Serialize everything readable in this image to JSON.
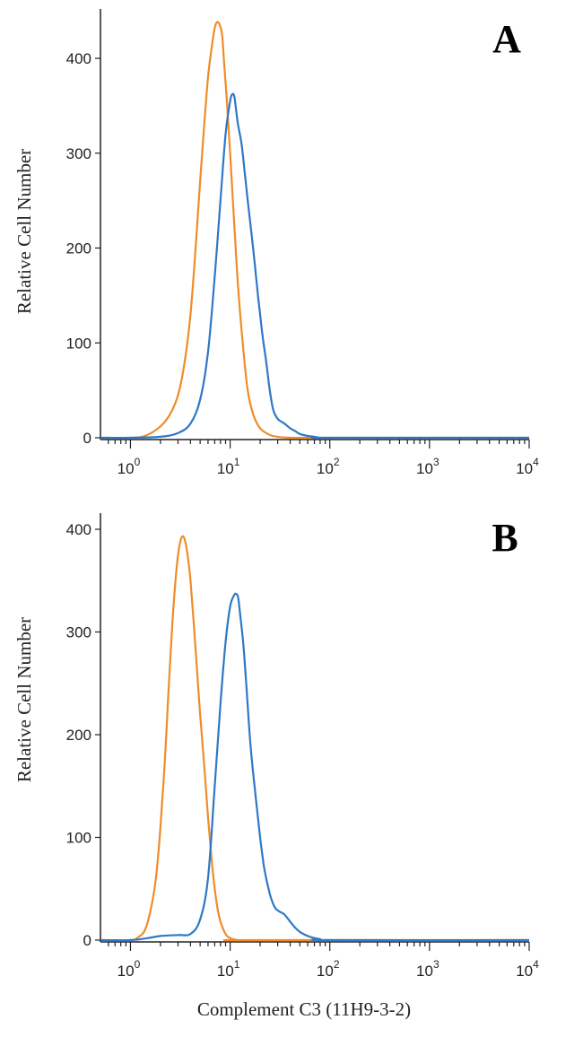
{
  "chart_data": [
    {
      "type": "line",
      "panel_label": "A",
      "ylabel": "Relative Cell Number",
      "xlabel": "",
      "x_scale": "log",
      "xlim": [
        0.5,
        10000
      ],
      "ylim": [
        0,
        460
      ],
      "xticks": [
        {
          "base": "10",
          "exp": "0"
        },
        {
          "base": "10",
          "exp": "1"
        },
        {
          "base": "10",
          "exp": "2"
        },
        {
          "base": "10",
          "exp": "3"
        },
        {
          "base": "10",
          "exp": "4"
        }
      ],
      "yticks": [
        "0",
        "100",
        "200",
        "300",
        "400"
      ],
      "ytick_values": [
        0,
        100,
        200,
        300,
        400
      ],
      "xtick_values": [
        1,
        10,
        100,
        1000,
        10000
      ],
      "grid": false,
      "series": [
        {
          "color": "#f08c28",
          "x": [
            0.5,
            1.0,
            1.4,
            2.0,
            2.5,
            3.0,
            3.5,
            4.0,
            4.5,
            5.0,
            5.5,
            6.0,
            6.5,
            7.0,
            7.4,
            7.8,
            8.3,
            8.7,
            9.2,
            10.0,
            11.0,
            12.0,
            13.5,
            15.0,
            17.0,
            20.0,
            25.0,
            30.0,
            40.0,
            60.0,
            10000
          ],
          "y": [
            0,
            0,
            2,
            12,
            25,
            45,
            80,
            130,
            200,
            270,
            330,
            380,
            410,
            432,
            438,
            436,
            425,
            395,
            360,
            300,
            225,
            160,
            95,
            50,
            25,
            10,
            3,
            1,
            0,
            0,
            0
          ]
        },
        {
          "color": "#2e78c8",
          "x": [
            0.5,
            1.0,
            2.0,
            3.0,
            4.0,
            5.0,
            6.0,
            7.0,
            8.0,
            9.0,
            10.0,
            10.5,
            11.0,
            11.5,
            12.0,
            13.0,
            14.0,
            15.0,
            17.0,
            19.0,
            21.0,
            23.0,
            25.0,
            27.0,
            30.0,
            35.0,
            40.0,
            45.0,
            50.0,
            60.0,
            70.0,
            80.0,
            100.0,
            10000
          ],
          "y": [
            0,
            0,
            1,
            5,
            15,
            40,
            90,
            170,
            250,
            320,
            355,
            362,
            360,
            345,
            330,
            310,
            280,
            250,
            200,
            150,
            110,
            80,
            50,
            30,
            20,
            15,
            10,
            7,
            4,
            2,
            1,
            0,
            0,
            0
          ]
        }
      ]
    },
    {
      "type": "line",
      "panel_label": "B",
      "ylabel": "Relative Cell Number",
      "xlabel": "Complement C3 (11H9-3-2)",
      "x_scale": "log",
      "xlim": [
        0.5,
        10000
      ],
      "ylim": [
        0,
        420
      ],
      "xticks": [
        {
          "base": "10",
          "exp": "0"
        },
        {
          "base": "10",
          "exp": "1"
        },
        {
          "base": "10",
          "exp": "2"
        },
        {
          "base": "10",
          "exp": "3"
        },
        {
          "base": "10",
          "exp": "4"
        }
      ],
      "yticks": [
        "0",
        "100",
        "200",
        "300",
        "400"
      ],
      "ytick_values": [
        0,
        100,
        200,
        300,
        400
      ],
      "xtick_values": [
        1,
        10,
        100,
        1000,
        10000
      ],
      "grid": false,
      "series": [
        {
          "color": "#f08c28",
          "x": [
            0.5,
            1.0,
            1.2,
            1.4,
            1.6,
            1.8,
            2.0,
            2.2,
            2.4,
            2.6,
            2.8,
            3.0,
            3.2,
            3.4,
            3.6,
            3.8,
            4.0,
            4.3,
            4.6,
            5.0,
            5.5,
            6.0,
            6.5,
            7.0,
            7.5,
            8.0,
            9.0,
            10.0,
            12.0,
            15.0,
            10000
          ],
          "y": [
            0,
            0,
            3,
            10,
            30,
            60,
            110,
            170,
            240,
            300,
            345,
            375,
            390,
            393,
            385,
            370,
            350,
            310,
            270,
            220,
            170,
            120,
            80,
            50,
            30,
            18,
            6,
            2,
            0,
            0,
            0
          ]
        },
        {
          "color": "#2e78c8",
          "x": [
            0.5,
            1.0,
            1.5,
            2.0,
            3.0,
            4.0,
            5.0,
            6.0,
            7.0,
            8.0,
            9.0,
            10.0,
            11.0,
            11.5,
            12.0,
            12.5,
            13.5,
            14.5,
            16.0,
            18.0,
            20.0,
            22.0,
            25.0,
            28.0,
            31.0,
            35.0,
            40.0,
            45.0,
            50.0,
            60.0,
            70.0,
            80.0,
            100.0,
            10000
          ],
          "y": [
            0,
            0,
            2,
            4,
            5,
            6,
            20,
            60,
            150,
            230,
            290,
            325,
            336,
            337,
            334,
            320,
            290,
            250,
            190,
            140,
            100,
            70,
            45,
            32,
            28,
            25,
            18,
            12,
            8,
            4,
            2,
            1,
            0,
            0
          ]
        }
      ]
    }
  ]
}
